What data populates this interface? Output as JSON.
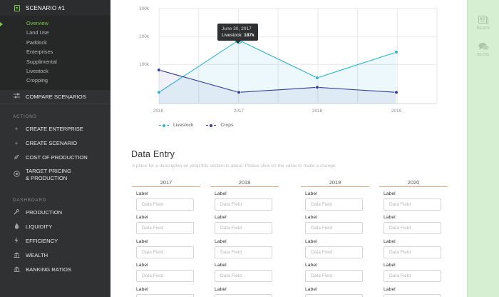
{
  "sidebar": {
    "scenario_title": "SCENARIO #1",
    "sub_items": [
      "Overview",
      "Land Use",
      "Paddock",
      "Enterprises",
      "Supplimental",
      "Livestock",
      "Cropping"
    ],
    "active_sub_item": "Overview",
    "compare": "COMPARE SCENARIOS",
    "actions_heading": "ACTIONS",
    "actions": {
      "create_enterprise": "CREATE ENTERPRISE",
      "create_scenario": "CREATE SCENARIO",
      "cost_of_production": "COST OF PRODUCTION",
      "target_line1": "TARGET PRICING",
      "target_line2": "& PRODUCTION"
    },
    "dashboard_heading": "DASHBOARD",
    "dashboard": {
      "production": "PRODUCTION",
      "liquidity": "LIQUIDITY",
      "efficiency": "EFFICIENCY",
      "wealth": "WEALTH",
      "banking_ratios": "BANKING RATIOS"
    }
  },
  "right_panel": {
    "news": "NEWS",
    "blog": "BLOG"
  },
  "tooltip": {
    "date": "June 30, 2017",
    "series": "Livestock:",
    "value": "187k"
  },
  "chart_data": {
    "type": "area",
    "x": [
      2016,
      2017,
      2018,
      2019
    ],
    "x_tick_labels": [
      "2016",
      "2017",
      "2018",
      "2019"
    ],
    "y_tick_labels": [
      "300k",
      "200k",
      "100k"
    ],
    "ylim": [
      -40000,
      300000
    ],
    "grid": true,
    "legend": "bottom-left",
    "series": [
      {
        "name": "Livestock",
        "color": "#29b6d2",
        "values": [
          {
            "x": 2016,
            "y": 0
          },
          {
            "x": 2017.5,
            "y": 187000
          },
          {
            "x": 2018,
            "y": 52000
          },
          {
            "x": 2019,
            "y": 144000
          }
        ]
      },
      {
        "name": "Crops",
        "color": "#303f9f",
        "values": [
          {
            "x": 2016,
            "y": 80000
          },
          {
            "x": 2017.5,
            "y": 0
          },
          {
            "x": 2018,
            "y": 18000
          },
          {
            "x": 2019,
            "y": 0
          }
        ]
      }
    ]
  },
  "data_entry": {
    "title": "Data Entry",
    "description": "A place for a description on what this section is about. Please click on the value to make a change.",
    "years": [
      "2017",
      "2018",
      "2019",
      "2020"
    ],
    "label": "Label",
    "placeholder": "Data Field"
  },
  "colors": {
    "sidebar_bg": "#2f3132",
    "accent_green": "#7ac943",
    "livestock": "#29b6d2",
    "crops": "#303f9f",
    "year_underline": "#f0a87b"
  }
}
